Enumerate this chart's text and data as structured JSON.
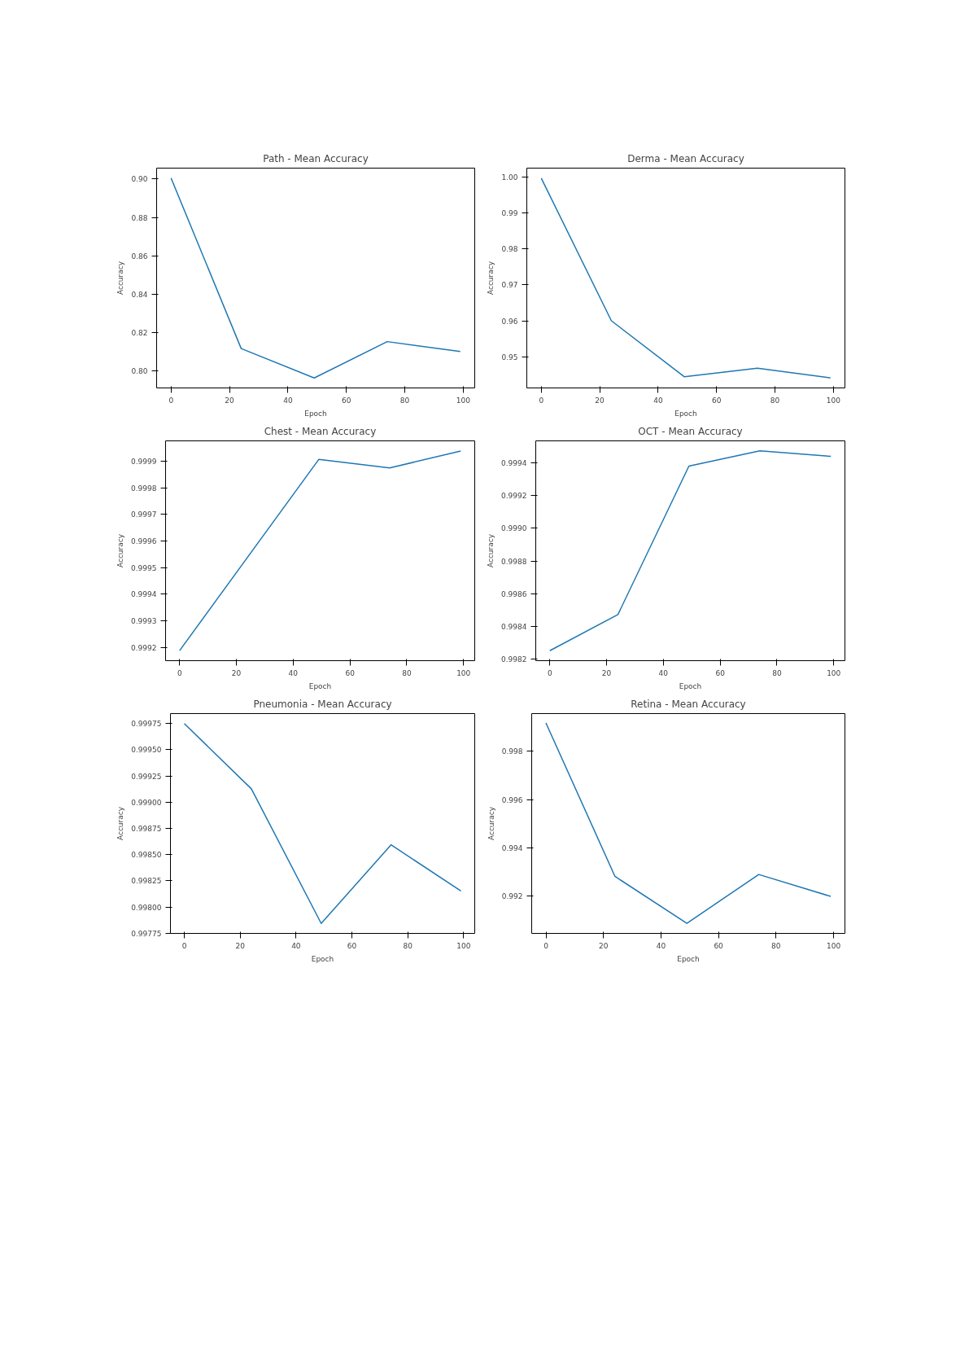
{
  "chart_data": [
    {
      "type": "line",
      "title": "Path - Mean Accuracy",
      "xlabel": "Epoch",
      "ylabel": "Accuracy",
      "x": [
        0,
        24,
        49,
        74,
        99
      ],
      "series": [
        {
          "color": "#1f77b4",
          "values": [
            0.9005,
            0.8118,
            0.7965,
            0.8154,
            0.8103
          ]
        }
      ],
      "xlim": [
        -4.95,
        103.95
      ],
      "xticks": [
        0,
        20,
        40,
        60,
        80,
        100
      ],
      "ylim": [
        0.7913,
        0.9057
      ],
      "yticks": [
        {
          "value": 0.8,
          "label": "0.80"
        },
        {
          "value": 0.82,
          "label": "0.82"
        },
        {
          "value": 0.84,
          "label": "0.84"
        },
        {
          "value": 0.86,
          "label": "0.86"
        },
        {
          "value": 0.88,
          "label": "0.88"
        },
        {
          "value": 0.9,
          "label": "0.90"
        }
      ]
    },
    {
      "type": "line",
      "title": "Derma - Mean Accuracy",
      "xlabel": "Epoch",
      "ylabel": "Accuracy",
      "x": [
        0,
        24,
        49,
        74,
        99
      ],
      "series": [
        {
          "color": "#1f77b4",
          "values": [
            0.9997,
            0.96,
            0.9444,
            0.9468,
            0.9441
          ]
        }
      ],
      "xlim": [
        -4.95,
        103.95
      ],
      "xticks": [
        0,
        20,
        40,
        60,
        80,
        100
      ],
      "ylim": [
        0.9413,
        1.0025
      ],
      "yticks": [
        0.95,
        0.96,
        0.97,
        0.98,
        0.99,
        {
          "value": 1.0,
          "label": "1.00"
        }
      ]
    },
    {
      "type": "line",
      "title": "Chest - Mean Accuracy",
      "xlabel": "Epoch",
      "ylabel": "Accuracy",
      "x": [
        0,
        24,
        49,
        74,
        99
      ],
      "series": [
        {
          "color": "#1f77b4",
          "values": [
            0.999188,
            0.99954,
            0.999907,
            0.999875,
            0.999939
          ]
        }
      ],
      "xlim": [
        -4.95,
        103.95
      ],
      "xticks": [
        0,
        20,
        40,
        60,
        80,
        100
      ],
      "ylim": [
        0.99915,
        0.999977
      ],
      "yticks": [
        0.9992,
        0.9993,
        0.9994,
        0.9995,
        0.9996,
        0.9997,
        0.9998,
        0.9999
      ]
    },
    {
      "type": "line",
      "title": "OCT - Mean Accuracy",
      "xlabel": "Epoch",
      "ylabel": "Accuracy",
      "x": [
        0,
        24,
        49,
        74,
        99
      ],
      "series": [
        {
          "color": "#1f77b4",
          "values": [
            0.998252,
            0.998473,
            0.99938,
            0.999473,
            0.999439
          ]
        }
      ],
      "xlim": [
        -4.95,
        103.95
      ],
      "xticks": [
        0,
        20,
        40,
        60,
        80,
        100
      ],
      "ylim": [
        0.998191,
        0.999534
      ],
      "yticks": [
        0.9982,
        0.9984,
        0.9986,
        0.9988,
        {
          "value": 0.999,
          "label": "0.9990"
        },
        0.9992,
        0.9994
      ]
    },
    {
      "type": "line",
      "title": "Pneumonia - Mean Accuracy",
      "xlabel": "Epoch",
      "ylabel": "Accuracy",
      "x": [
        0,
        24,
        49,
        74,
        99
      ],
      "series": [
        {
          "color": "#1f77b4",
          "values": [
            0.99975,
            0.999128,
            0.997844,
            0.998594,
            0.998153
          ]
        }
      ],
      "xlim": [
        -4.95,
        103.95
      ],
      "xticks": [
        0,
        20,
        40,
        60,
        80,
        100
      ],
      "ylim": [
        0.997749,
        0.999845
      ],
      "yticks": [
        0.99775,
        {
          "value": 0.998,
          "label": "0.99800"
        },
        0.99825,
        {
          "value": 0.9985,
          "label": "0.99850"
        },
        0.99875,
        {
          "value": 0.999,
          "label": "0.99900"
        },
        0.99925,
        {
          "value": 0.9995,
          "label": "0.99950"
        },
        0.99975
      ]
    },
    {
      "type": "line",
      "title": "Retina - Mean Accuracy",
      "xlabel": "Epoch",
      "ylabel": "Accuracy",
      "x": [
        0,
        24,
        49,
        74,
        99
      ],
      "series": [
        {
          "color": "#1f77b4",
          "values": [
            0.99918,
            0.99281,
            0.99086,
            0.99289,
            0.99198
          ]
        }
      ],
      "xlim": [
        -4.95,
        103.95
      ],
      "xticks": [
        0,
        20,
        40,
        60,
        80,
        100
      ],
      "ylim": [
        0.990444,
        0.999567
      ],
      "yticks": [
        0.992,
        0.994,
        0.996,
        0.998
      ]
    }
  ]
}
